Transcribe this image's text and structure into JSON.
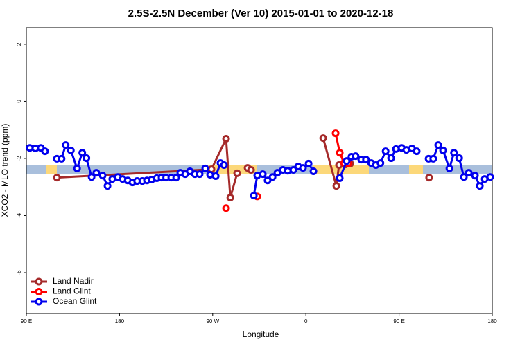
{
  "chart_data": {
    "type": "line",
    "title": "2.5S-2.5N December (Ver 10)   2015-01-01 to 2020-12-18",
    "x_label": "Longitude",
    "y_label": "XCO2 - MLO trend (ppm)",
    "xlim": [
      90,
      540
    ],
    "xticks": [
      {
        "value": 90,
        "label": "90 E"
      },
      {
        "value": 180,
        "label": "180"
      },
      {
        "value": 270,
        "label": "90 W"
      },
      {
        "value": 360,
        "label": "0"
      },
      {
        "value": 450,
        "label": "90 E"
      },
      {
        "value": 540,
        "label": "180"
      }
    ],
    "ylim": [
      -7.43,
      2.58
    ],
    "yticks": [
      2,
      0,
      -2,
      -4,
      -6
    ],
    "legend": "bottom-left",
    "series": [
      {
        "name": "Land Nadir",
        "color": "#a52a2a",
        "x": [
          119.5,
          268.8,
          282.9,
          287,
          293.6,
          298,
          303.7,
          307,
          372,
          376.7,
          389.4,
          392,
          398,
          402.8,
          440,
          479
        ],
        "values": [
          -2.67,
          -2.38,
          -1.31,
          -3.37,
          -2.52,
          null,
          -2.33,
          -2.4,
          null,
          -1.29,
          -2.96,
          -2.23,
          -2.21,
          -2.18,
          null,
          -2.67
        ]
      },
      {
        "name": "Land Glint",
        "color": "#ff0000",
        "x": [
          282.9,
          298,
          313,
          350,
          388.7,
          392.7,
          396.8,
          400.8
        ],
        "values": [
          -3.74,
          null,
          -3.33,
          null,
          -1.12,
          -1.8,
          -2.16,
          -2.18
        ]
      },
      {
        "name": "Ocean Glint",
        "color": "#0000ee",
        "x": [
          93.3,
          98.7,
          104,
          108,
          114,
          119.5,
          124,
          128,
          133,
          139,
          144,
          148,
          153,
          157.6,
          163.7,
          168.4,
          173,
          178.4,
          183,
          188,
          192.5,
          197,
          202,
          206.5,
          211,
          216,
          220.6,
          225,
          230,
          234.7,
          238.7,
          243.4,
          248,
          252.8,
          257.4,
          262.8,
          267.5,
          272.9,
          277.5,
          280.9,
          295,
          309.7,
          313,
          318.4,
          323,
          327.8,
          332.5,
          337.8,
          342.5,
          347.9,
          352.6,
          357.2,
          362.6,
          367.3,
          380,
          392.7,
          399.4,
          404,
          408,
          413.5,
          418,
          423,
          427.6,
          432,
          437,
          442.3,
          447,
          452.4,
          457,
          462.4,
          467,
          472,
          478.5,
          483,
          487.8,
          492.5,
          498.6,
          503,
          508,
          512.6,
          517.3,
          523.3,
          528,
          532.7,
          538
        ],
        "values": [
          -1.63,
          -1.65,
          -1.63,
          -1.75,
          null,
          -2.01,
          -2.01,
          -1.53,
          -1.72,
          -2.35,
          -1.8,
          -1.99,
          -2.65,
          -2.5,
          -2.6,
          -2.96,
          -2.72,
          -2.65,
          -2.72,
          -2.77,
          -2.84,
          -2.79,
          -2.79,
          -2.77,
          -2.74,
          -2.69,
          -2.67,
          -2.67,
          -2.67,
          -2.67,
          -2.5,
          -2.55,
          -2.45,
          -2.55,
          -2.55,
          -2.35,
          -2.57,
          -2.62,
          -2.16,
          -2.23,
          null,
          -3.3,
          -2.6,
          -2.55,
          -2.77,
          -2.65,
          -2.5,
          -2.4,
          -2.43,
          -2.4,
          -2.28,
          -2.33,
          -2.18,
          -2.45,
          null,
          -2.69,
          -2.09,
          -1.94,
          -1.92,
          -2.04,
          -2.04,
          -2.16,
          -2.23,
          -2.16,
          -1.75,
          -1.99,
          -1.67,
          -1.63,
          -1.7,
          -1.65,
          -1.75,
          null,
          -2.01,
          -2.01,
          -1.53,
          -1.72,
          -2.35,
          -1.8,
          -1.99,
          -2.65,
          -2.5,
          -2.6,
          -2.96,
          -2.72,
          -2.65
        ]
      }
    ]
  }
}
